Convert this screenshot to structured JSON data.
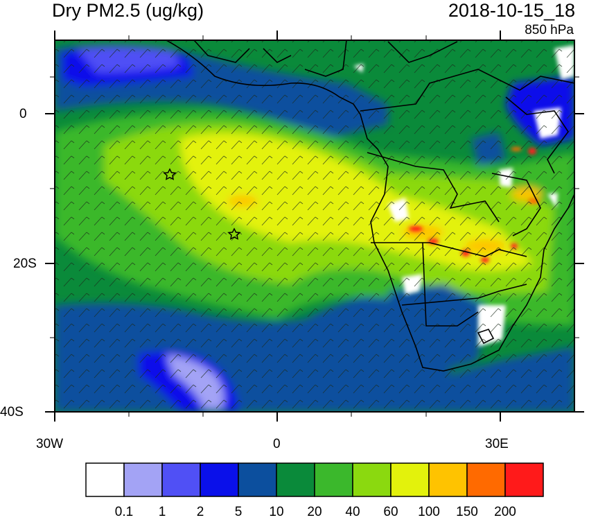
{
  "header": {
    "title": "Dry PM2.5 (ug/kg)",
    "datetime": "2018-10-15_18",
    "level": "850 hPa"
  },
  "map": {
    "lat_labels": [
      "0",
      "20S",
      "40S"
    ],
    "lon_labels": [
      "30W",
      "0",
      "30E"
    ],
    "markers": [
      "star-marker",
      "star-marker"
    ]
  },
  "colorbar": {
    "colors": [
      "#ffffff",
      "#a3a3f5",
      "#5050f5",
      "#0a10ea",
      "#0c4f9e",
      "#0a8a3a",
      "#3bb82c",
      "#8bd90f",
      "#e3f20c",
      "#ffc300",
      "#ff6a00",
      "#ff1a1a"
    ],
    "labels": [
      "0.1",
      "1",
      "2",
      "5",
      "10",
      "20",
      "40",
      "60",
      "100",
      "150",
      "200"
    ]
  }
}
